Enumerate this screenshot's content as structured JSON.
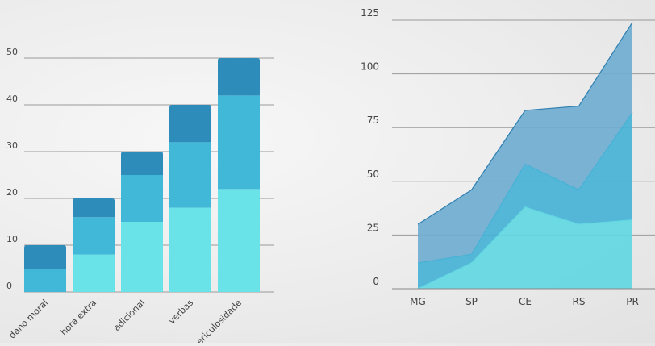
{
  "chart_data": [
    {
      "type": "bar",
      "stacked": true,
      "categories": [
        "dano moral",
        "hora extra",
        "adicional",
        "verbas",
        "periculosidade"
      ],
      "series": [
        {
          "values": [
            0,
            8,
            15,
            18,
            22
          ],
          "color": "#6ae3e8"
        },
        {
          "values": [
            5,
            8,
            10,
            14,
            20
          ],
          "color": "#42b8d8"
        },
        {
          "values": [
            5,
            4,
            5,
            8,
            8
          ],
          "color": "#2d8cba"
        }
      ],
      "yticks": [
        0,
        10,
        20,
        30,
        40,
        50
      ],
      "ylim": [
        0,
        55
      ],
      "grid": true
    },
    {
      "type": "area",
      "stacked": true,
      "categories": [
        "MG",
        "SP",
        "CE",
        "RS",
        "PR"
      ],
      "series": [
        {
          "values": [
            0,
            12,
            38,
            30,
            32
          ],
          "color": "#62d7e2"
        },
        {
          "values": [
            12,
            4,
            20,
            16,
            50
          ],
          "color": "#46b2d6"
        },
        {
          "values": [
            18,
            30,
            25,
            39,
            42
          ],
          "color": "#6fadd0"
        }
      ],
      "yticks": [
        0,
        25,
        50,
        75,
        100,
        125
      ],
      "ylim": [
        0,
        125
      ],
      "grid": true
    }
  ]
}
